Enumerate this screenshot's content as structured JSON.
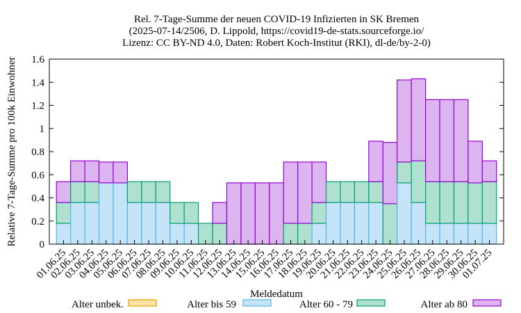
{
  "chart_data": {
    "type": "bar",
    "stacked": true,
    "title_lines": [
      "Rel. 7-Tage-Summe der neuen COVID-19 Infizierten in SK Bremen",
      "(2025-07-14/2506, D. Lippold, https://covid19-de-stats.sourceforge.io/",
      "Lizenz: CC BY-ND 4.0, Daten: Robert Koch-Institut (RKI), dl-de/by-2-0)"
    ],
    "xlabel": "Meldedatum",
    "ylabel": "Relative 7-Tage-Summe pro 100k Einwohner",
    "ylim": [
      0,
      1.6
    ],
    "yticks": [
      "0",
      "0.2",
      "0.4",
      "0.6",
      "0.8",
      "1",
      "1.2",
      "1.4",
      "1.6"
    ],
    "grid": false,
    "legend_position": "bottom",
    "categories": [
      "01.06.25",
      "02.06.25",
      "03.06.25",
      "04.06.25",
      "05.06.25",
      "06.06.25",
      "07.06.25",
      "08.06.25",
      "09.06.25",
      "10.06.25",
      "11.06.25",
      "12.06.25",
      "13.06.25",
      "14.06.25",
      "15.06.25",
      "16.06.25",
      "17.06.25",
      "18.06.25",
      "19.06.25",
      "20.06.25",
      "21.06.25",
      "22.06.25",
      "23.06.25",
      "24.06.25",
      "25.06.25",
      "26.06.25",
      "27.06.25",
      "28.06.25",
      "29.06.25",
      "30.06.25",
      "01.07.25"
    ],
    "series": [
      {
        "name": "Alter unbek.",
        "fill": "#fce4a8",
        "stroke": "#e69f00",
        "values": [
          0,
          0,
          0,
          0,
          0,
          0,
          0,
          0,
          0,
          0,
          0,
          0,
          0,
          0,
          0,
          0,
          0,
          0,
          0,
          0,
          0,
          0,
          0,
          0,
          0,
          0,
          0,
          0,
          0,
          0,
          0
        ]
      },
      {
        "name": "Alter bis 59",
        "fill": "#c6e4f7",
        "stroke": "#56b4e9",
        "values": [
          0.18,
          0.36,
          0.36,
          0.53,
          0.53,
          0.36,
          0.36,
          0.36,
          0.18,
          0.18,
          0,
          0,
          0,
          0,
          0,
          0,
          0,
          0,
          0.18,
          0.36,
          0.36,
          0.36,
          0.36,
          0,
          0.53,
          0.36,
          0.18,
          0.18,
          0.18,
          0.18,
          0.18
        ]
      },
      {
        "name": "Alter 60 - 79",
        "fill": "#b0e0d0",
        "stroke": "#009e73",
        "values": [
          0.18,
          0.18,
          0.18,
          0,
          0,
          0.18,
          0.18,
          0.18,
          0.18,
          0.18,
          0.18,
          0.18,
          0,
          0,
          0,
          0,
          0.18,
          0.18,
          0.18,
          0.18,
          0.18,
          0.18,
          0.18,
          0.35,
          0.18,
          0.36,
          0.36,
          0.36,
          0.36,
          0.35,
          0.36
        ]
      },
      {
        "name": "Alter ab 80",
        "fill": "#dcb4f0",
        "stroke": "#9400d3",
        "values": [
          0.18,
          0.18,
          0.18,
          0.18,
          0.18,
          0,
          0,
          0,
          0,
          0,
          0,
          0.18,
          0.53,
          0.53,
          0.53,
          0.53,
          0.53,
          0.53,
          0.35,
          0,
          0,
          0,
          0.35,
          0.53,
          0.71,
          0.71,
          0.71,
          0.71,
          0.71,
          0.36,
          0.18
        ]
      }
    ]
  }
}
